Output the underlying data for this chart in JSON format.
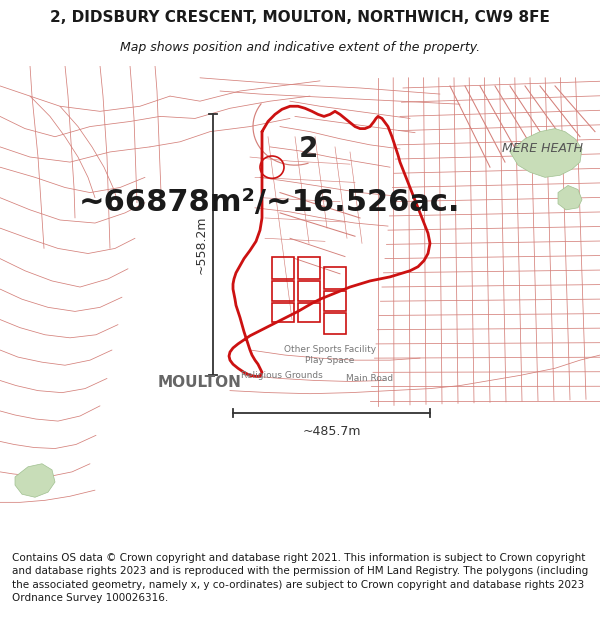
{
  "title_line1": "2, DIDSBURY CRESCENT, MOULTON, NORTHWICH, CW9 8FE",
  "title_line2": "Map shows position and indicative extent of the property.",
  "area_text": "~66878m²/~16.526ac.",
  "dim_vertical": "~558.2m",
  "dim_horizontal": "~485.7m",
  "label_number": "2",
  "label_place": "MOULTON",
  "label_mere_heath": "MERE HEATH",
  "label_other_sports": "Other Sports Facility",
  "label_play_space": "Play Space",
  "label_religious": "Religious Grounds",
  "label_main_road": "Main Road",
  "copyright_text": "Contains OS data © Crown copyright and database right 2021. This information is subject to Crown copyright and database rights 2023 and is reproduced with the permission of HM Land Registry. The polygons (including the associated geometry, namely x, y co-ordinates) are subject to Crown copyright and database rights 2023 Ordnance Survey 100026316.",
  "bg_color": "#ffffff",
  "map_bg": "#ffffff",
  "road_color": "#d4807a",
  "road_lw": 0.55,
  "title_color": "#1a1a1a",
  "red_color": "#cc1111",
  "green_color": "#c8ddb8",
  "green_edge": "#a0c090",
  "dim_color": "#333333",
  "label_color": "#555555",
  "small_label_color": "#777777",
  "area_fontsize": 22,
  "title_fontsize": 11,
  "subtitle_fontsize": 9,
  "dim_fontsize": 9,
  "number_fontsize": 20,
  "moulton_fontsize": 11,
  "mere_heath_fontsize": 9,
  "small_label_fontsize": 6.5,
  "copyright_fontsize": 7.5
}
